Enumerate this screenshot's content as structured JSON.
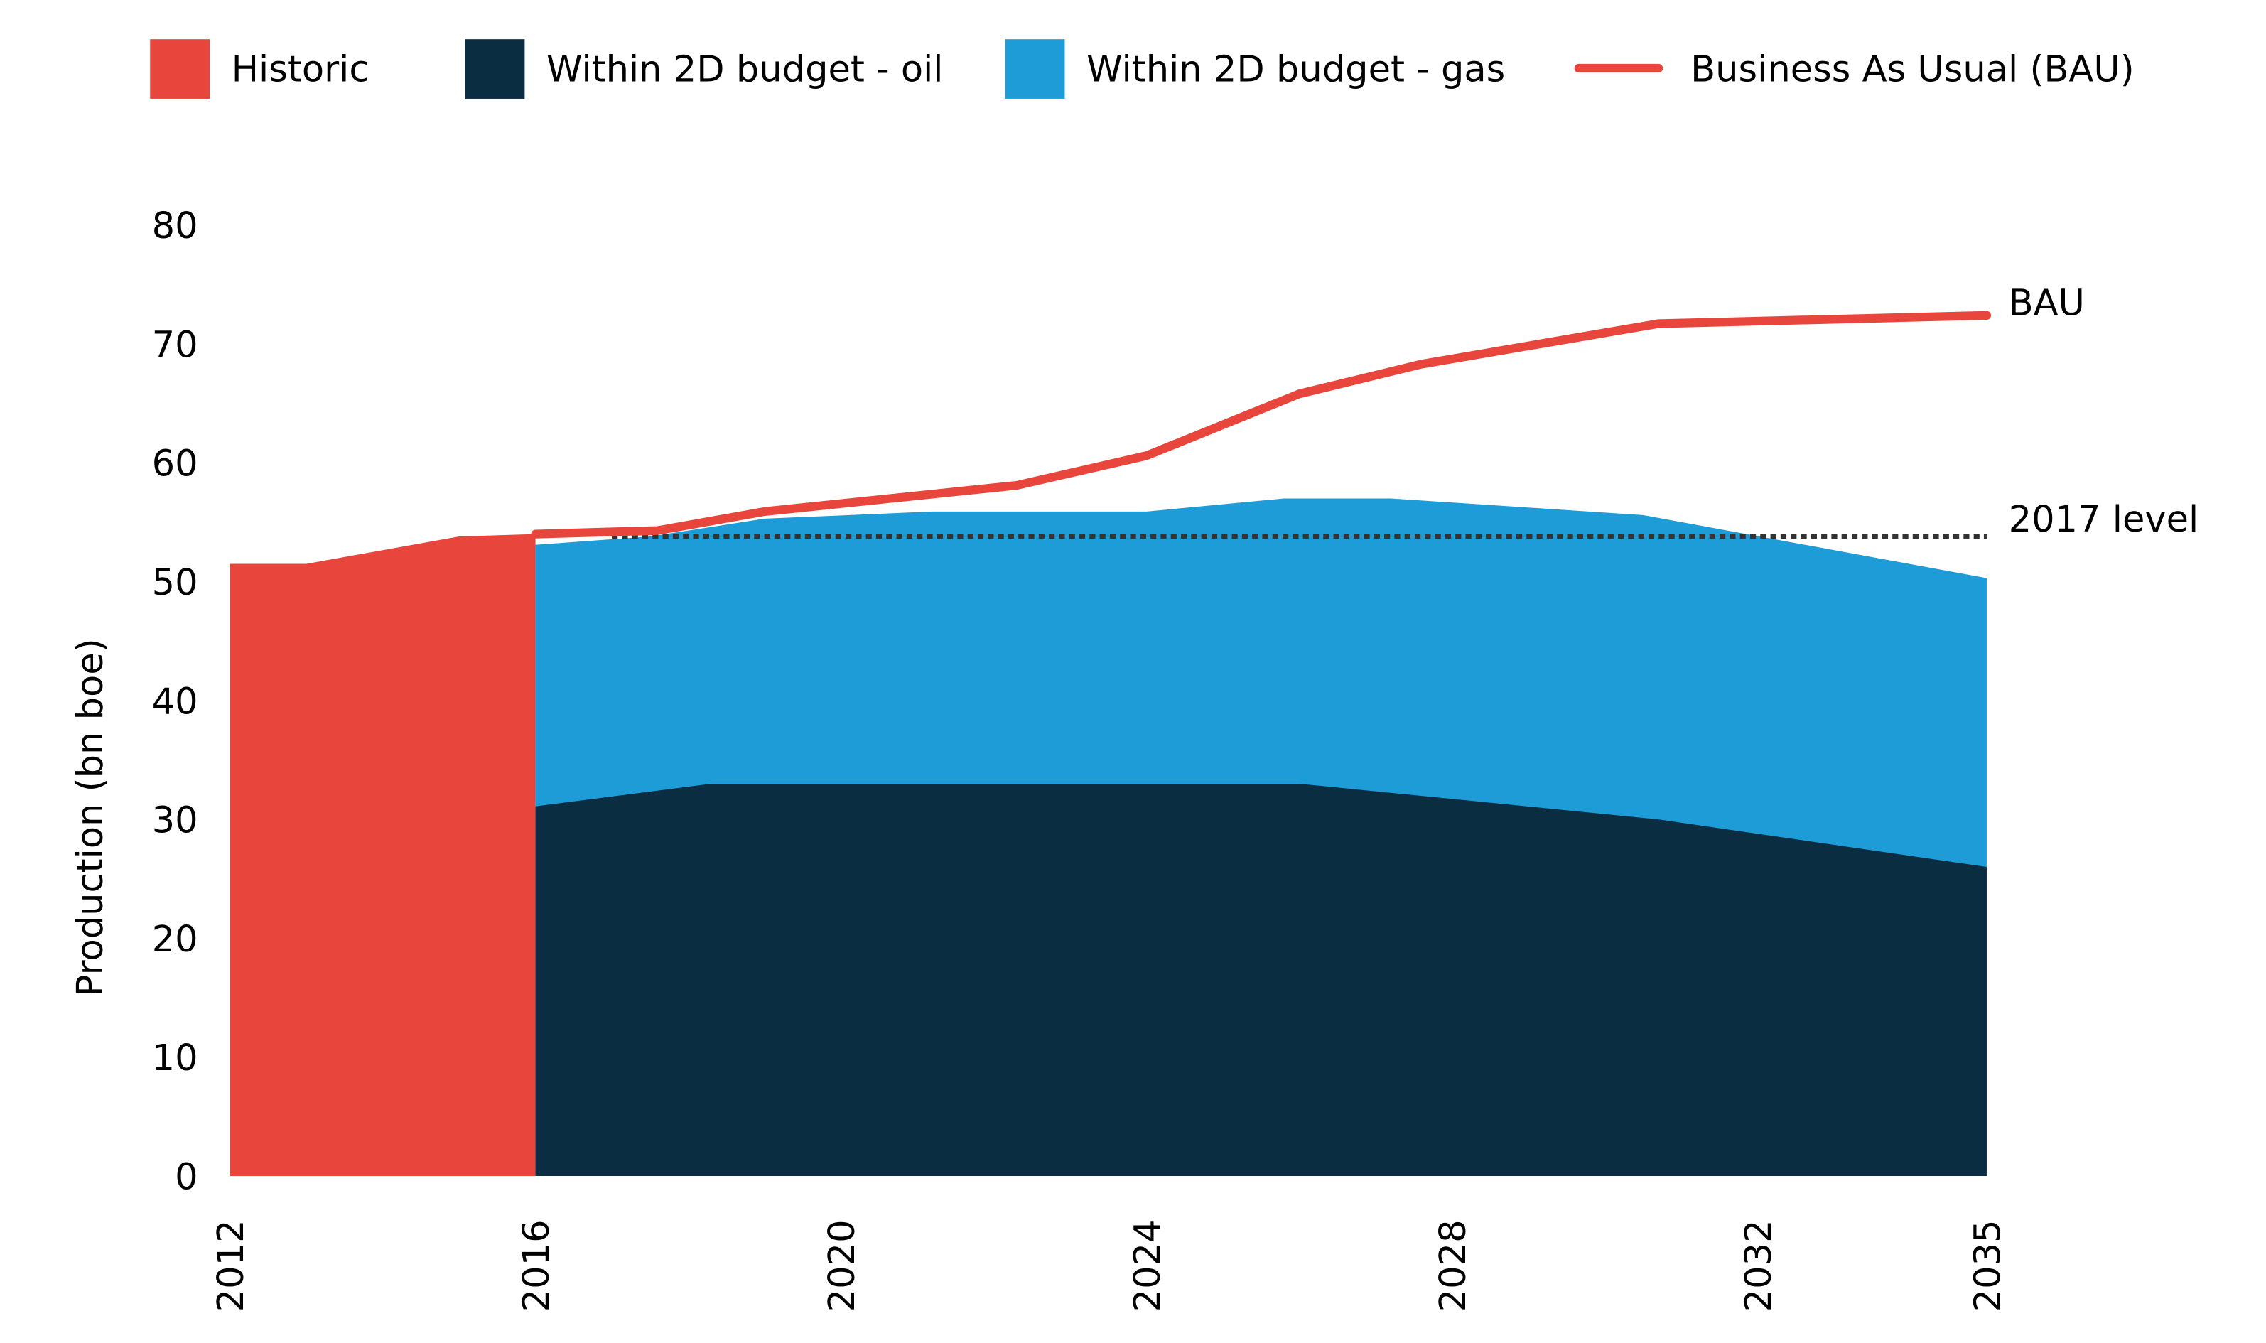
{
  "chart_data": {
    "type": "area",
    "ylabel": "Production (bn boe)",
    "xlabel": "",
    "ylim": [
      0,
      80
    ],
    "xlim": [
      2012,
      2035
    ],
    "yticks": [
      "0",
      "10",
      "20",
      "30",
      "40",
      "50",
      "60",
      "70",
      "80"
    ],
    "xticks": [
      "2012",
      "2016",
      "2020",
      "2024",
      "2028",
      "2032",
      "2035"
    ],
    "legend_position": "top",
    "legend": [
      {
        "label": "Historic",
        "kind": "box",
        "color": "#E8453C"
      },
      {
        "label": "Within 2D budget - oil",
        "kind": "box",
        "color": "#0B2D42"
      },
      {
        "label": "Within 2D budget - gas",
        "kind": "box",
        "color": "#1E9CD8"
      },
      {
        "label": "Business As Usual (BAU)",
        "kind": "line",
        "color": "#E8453C"
      }
    ],
    "series": [
      {
        "name": "Historic",
        "color": "#E8453C",
        "x": [
          2012,
          2013,
          2015,
          2016
        ],
        "y": [
          51.5,
          51.5,
          53.8,
          54
        ]
      },
      {
        "name": "Within 2D budget - oil",
        "color": "#0B2D42",
        "x": [
          2016,
          2018.3,
          2026,
          2030.7,
          2035
        ],
        "y": [
          31.1,
          33,
          33,
          30,
          26
        ]
      },
      {
        "name": "Within 2D budget - gas (stack top)",
        "color": "#1E9CD8",
        "x": [
          2016,
          2017.5,
          2019,
          2021.2,
          2024,
          2025.8,
          2027.2,
          2030.5,
          2035
        ],
        "y": [
          53.1,
          53.8,
          55.3,
          55.9,
          55.9,
          57,
          57,
          55.6,
          50.3
        ]
      },
      {
        "name": "Business As Usual (BAU)",
        "color": "#E8453C",
        "x": [
          2016,
          2017.6,
          2019,
          2022.3,
          2024,
          2026,
          2027.6,
          2030.7,
          2035
        ],
        "y": [
          54,
          54.3,
          55.9,
          58.1,
          60.6,
          65.8,
          68.3,
          71.7,
          72.4
        ]
      }
    ],
    "reference_line": {
      "label": "2017 level",
      "value": 53.8,
      "x": [
        2017,
        2035
      ]
    },
    "annotations": {
      "bau": "BAU",
      "level": "2017 level"
    }
  }
}
